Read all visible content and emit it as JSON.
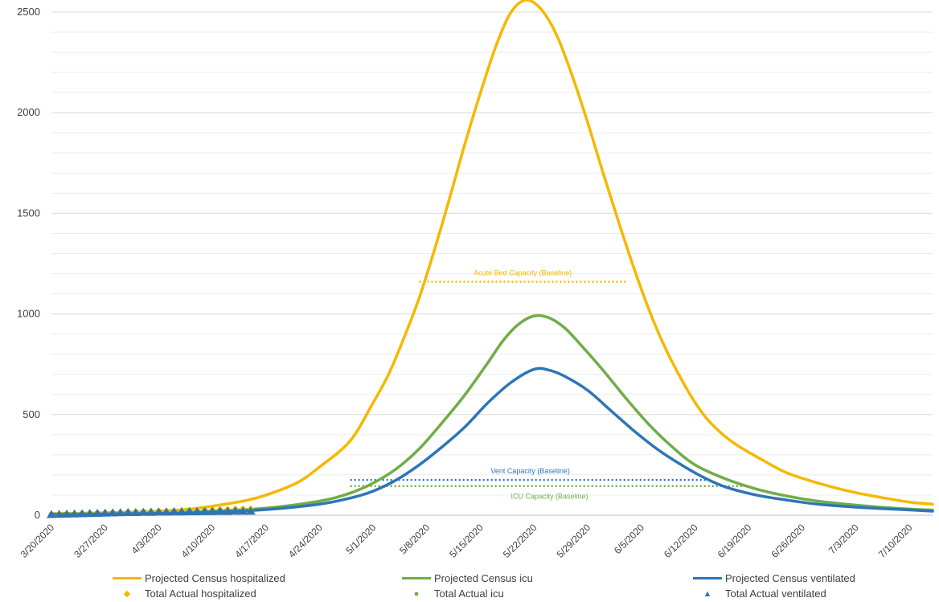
{
  "chart_data": {
    "type": "line",
    "title": "",
    "xlabel": "",
    "ylabel": "",
    "ylim": [
      0,
      2500
    ],
    "yticks": [
      "0",
      "500",
      "1000",
      "1500",
      "2000",
      "2500"
    ],
    "grid": "horizontal major and minor",
    "legend_position": "bottom",
    "x_range": [
      "2020-03-20",
      "2020-07-13"
    ],
    "xticks": [
      "3/20/2020",
      "3/27/2020",
      "4/3/2020",
      "4/10/2020",
      "4/17/2020",
      "4/24/2020",
      "5/1/2020",
      "5/8/2020",
      "5/15/2020",
      "5/22/2020",
      "5/29/2020",
      "6/5/2020",
      "6/12/2020",
      "6/19/2020",
      "6/26/2020",
      "7/3/2020",
      "7/10/2020"
    ],
    "series": [
      {
        "name": "Projected Census hospitalized",
        "color": "#F5B800",
        "style": "line",
        "points": [
          [
            "2020-03-20",
            8
          ],
          [
            "2020-03-27",
            12
          ],
          [
            "2020-04-03",
            20
          ],
          [
            "2020-04-07",
            30
          ],
          [
            "2020-04-10",
            45
          ],
          [
            "2020-04-14",
            70
          ],
          [
            "2020-04-17",
            100
          ],
          [
            "2020-04-21",
            160
          ],
          [
            "2020-04-24",
            240
          ],
          [
            "2020-04-28",
            370
          ],
          [
            "2020-05-01",
            560
          ],
          [
            "2020-05-03",
            700
          ],
          [
            "2020-05-05",
            880
          ],
          [
            "2020-05-07",
            1080
          ],
          [
            "2020-05-09",
            1320
          ],
          [
            "2020-05-11",
            1580
          ],
          [
            "2020-05-13",
            1850
          ],
          [
            "2020-05-15",
            2100
          ],
          [
            "2020-05-17",
            2330
          ],
          [
            "2020-05-19",
            2500
          ],
          [
            "2020-05-21",
            2560
          ],
          [
            "2020-05-23",
            2510
          ],
          [
            "2020-05-25",
            2380
          ],
          [
            "2020-05-27",
            2180
          ],
          [
            "2020-05-29",
            1950
          ],
          [
            "2020-05-31",
            1700
          ],
          [
            "2020-06-02",
            1460
          ],
          [
            "2020-06-04",
            1230
          ],
          [
            "2020-06-06",
            1020
          ],
          [
            "2020-06-08",
            840
          ],
          [
            "2020-06-10",
            690
          ],
          [
            "2020-06-12",
            560
          ],
          [
            "2020-06-14",
            460
          ],
          [
            "2020-06-17",
            360
          ],
          [
            "2020-06-21",
            270
          ],
          [
            "2020-06-24",
            210
          ],
          [
            "2020-06-28",
            160
          ],
          [
            "2020-07-02",
            120
          ],
          [
            "2020-07-06",
            90
          ],
          [
            "2020-07-10",
            65
          ],
          [
            "2020-07-13",
            55
          ]
        ]
      },
      {
        "name": "Projected Census icu",
        "color": "#70AD47",
        "style": "line",
        "points": [
          [
            "2020-03-20",
            5
          ],
          [
            "2020-04-03",
            10
          ],
          [
            "2020-04-10",
            20
          ],
          [
            "2020-04-17",
            35
          ],
          [
            "2020-04-24",
            70
          ],
          [
            "2020-04-28",
            110
          ],
          [
            "2020-05-01",
            160
          ],
          [
            "2020-05-04",
            230
          ],
          [
            "2020-05-07",
            330
          ],
          [
            "2020-05-10",
            460
          ],
          [
            "2020-05-13",
            600
          ],
          [
            "2020-05-16",
            760
          ],
          [
            "2020-05-18",
            870
          ],
          [
            "2020-05-20",
            950
          ],
          [
            "2020-05-22",
            990
          ],
          [
            "2020-05-24",
            980
          ],
          [
            "2020-05-26",
            930
          ],
          [
            "2020-05-28",
            850
          ],
          [
            "2020-05-31",
            720
          ],
          [
            "2020-06-03",
            580
          ],
          [
            "2020-06-06",
            450
          ],
          [
            "2020-06-09",
            340
          ],
          [
            "2020-06-12",
            250
          ],
          [
            "2020-06-16",
            180
          ],
          [
            "2020-06-20",
            130
          ],
          [
            "2020-06-24",
            95
          ],
          [
            "2020-06-28",
            70
          ],
          [
            "2020-07-03",
            50
          ],
          [
            "2020-07-08",
            35
          ],
          [
            "2020-07-13",
            25
          ]
        ]
      },
      {
        "name": "Projected Census ventilated",
        "color": "#2E75B6",
        "style": "line",
        "points": [
          [
            "2020-03-20",
            4
          ],
          [
            "2020-04-03",
            8
          ],
          [
            "2020-04-10",
            15
          ],
          [
            "2020-04-17",
            28
          ],
          [
            "2020-04-24",
            55
          ],
          [
            "2020-04-28",
            85
          ],
          [
            "2020-05-01",
            120
          ],
          [
            "2020-05-04",
            175
          ],
          [
            "2020-05-07",
            250
          ],
          [
            "2020-05-10",
            340
          ],
          [
            "2020-05-13",
            440
          ],
          [
            "2020-05-16",
            560
          ],
          [
            "2020-05-19",
            660
          ],
          [
            "2020-05-22",
            725
          ],
          [
            "2020-05-24",
            720
          ],
          [
            "2020-05-26",
            690
          ],
          [
            "2020-05-29",
            620
          ],
          [
            "2020-06-01",
            520
          ],
          [
            "2020-06-04",
            420
          ],
          [
            "2020-06-07",
            330
          ],
          [
            "2020-06-10",
            255
          ],
          [
            "2020-06-13",
            190
          ],
          [
            "2020-06-16",
            140
          ],
          [
            "2020-06-20",
            100
          ],
          [
            "2020-06-24",
            75
          ],
          [
            "2020-06-28",
            55
          ],
          [
            "2020-07-03",
            40
          ],
          [
            "2020-07-08",
            30
          ],
          [
            "2020-07-13",
            20
          ]
        ]
      },
      {
        "name": "Total Actual hospitalized",
        "color": "#F5B800",
        "style": "marker",
        "marker": "diamond",
        "points": [
          [
            "2020-03-20",
            5
          ],
          [
            "2020-03-21",
            6
          ],
          [
            "2020-03-22",
            8
          ],
          [
            "2020-03-23",
            9
          ],
          [
            "2020-03-24",
            10
          ],
          [
            "2020-03-25",
            12
          ],
          [
            "2020-03-26",
            13
          ],
          [
            "2020-03-27",
            15
          ],
          [
            "2020-03-28",
            16
          ],
          [
            "2020-03-29",
            17
          ],
          [
            "2020-03-30",
            18
          ],
          [
            "2020-03-31",
            19
          ],
          [
            "2020-04-01",
            20
          ],
          [
            "2020-04-02",
            21
          ],
          [
            "2020-04-03",
            22
          ],
          [
            "2020-04-04",
            23
          ],
          [
            "2020-04-05",
            24
          ],
          [
            "2020-04-06",
            25
          ],
          [
            "2020-04-07",
            26
          ],
          [
            "2020-04-08",
            27
          ],
          [
            "2020-04-09",
            28
          ],
          [
            "2020-04-10",
            29
          ],
          [
            "2020-04-11",
            30
          ],
          [
            "2020-04-12",
            31
          ],
          [
            "2020-04-13",
            32
          ],
          [
            "2020-04-14",
            33
          ],
          [
            "2020-04-15",
            33
          ]
        ]
      },
      {
        "name": "Total Actual icu",
        "color": "#70AD47",
        "style": "marker",
        "marker": "circle",
        "points": [
          [
            "2020-03-20",
            3
          ],
          [
            "2020-03-22",
            5
          ],
          [
            "2020-03-24",
            7
          ],
          [
            "2020-03-26",
            9
          ],
          [
            "2020-03-28",
            11
          ],
          [
            "2020-03-30",
            13
          ],
          [
            "2020-04-01",
            15
          ],
          [
            "2020-04-03",
            17
          ],
          [
            "2020-04-05",
            18
          ],
          [
            "2020-04-07",
            19
          ],
          [
            "2020-04-09",
            20
          ],
          [
            "2020-04-11",
            21
          ],
          [
            "2020-04-13",
            22
          ],
          [
            "2020-04-15",
            22
          ]
        ]
      },
      {
        "name": "Total Actual ventilated",
        "color": "#2E75B6",
        "style": "marker",
        "marker": "triangle",
        "points": [
          [
            "2020-03-20",
            2
          ],
          [
            "2020-03-21",
            3
          ],
          [
            "2020-03-22",
            4
          ],
          [
            "2020-03-23",
            5
          ],
          [
            "2020-03-24",
            6
          ],
          [
            "2020-03-25",
            7
          ],
          [
            "2020-03-26",
            8
          ],
          [
            "2020-03-27",
            9
          ],
          [
            "2020-03-28",
            10
          ],
          [
            "2020-03-29",
            11
          ],
          [
            "2020-03-30",
            12
          ],
          [
            "2020-03-31",
            12
          ],
          [
            "2020-04-01",
            13
          ],
          [
            "2020-04-02",
            13
          ],
          [
            "2020-04-03",
            14
          ],
          [
            "2020-04-04",
            14
          ],
          [
            "2020-04-05",
            15
          ],
          [
            "2020-04-06",
            15
          ],
          [
            "2020-04-07",
            16
          ],
          [
            "2020-04-08",
            16
          ],
          [
            "2020-04-09",
            17
          ],
          [
            "2020-04-10",
            17
          ],
          [
            "2020-04-11",
            18
          ],
          [
            "2020-04-12",
            18
          ],
          [
            "2020-04-13",
            19
          ],
          [
            "2020-04-14",
            19
          ],
          [
            "2020-04-15",
            19
          ]
        ]
      }
    ],
    "reference_lines": [
      {
        "label": "Acute Bed Capacity (Baseline)",
        "value": 1160,
        "x_start": "2020-05-07",
        "x_end": "2020-06-03",
        "color": "#F5B800",
        "label_position": "above"
      },
      {
        "label": "Vent Capacity (Baseline)",
        "value": 175,
        "x_start": "2020-04-28",
        "x_end": "2020-06-14",
        "color": "#2E75B6",
        "label_position": "above"
      },
      {
        "label": "ICU Capacity (Baseline)",
        "value": 145,
        "x_start": "2020-04-28",
        "x_end": "2020-06-19",
        "color": "#70AD47",
        "label_position": "below"
      }
    ]
  },
  "legend": {
    "items": [
      {
        "label": "Projected Census hospitalized",
        "kind": "line",
        "color": "#F5B800"
      },
      {
        "label": "Projected Census icu",
        "kind": "line",
        "color": "#70AD47"
      },
      {
        "label": "Projected Census ventilated",
        "kind": "line",
        "color": "#2E75B6"
      },
      {
        "label": "Total Actual hospitalized",
        "kind": "marker",
        "symbol": "◆",
        "color": "#F5B800"
      },
      {
        "label": "Total Actual icu",
        "kind": "marker",
        "symbol": "●",
        "color": "#70AD47"
      },
      {
        "label": "Total Actual ventilated",
        "kind": "marker",
        "symbol": "▲",
        "color": "#2E75B6"
      }
    ]
  }
}
